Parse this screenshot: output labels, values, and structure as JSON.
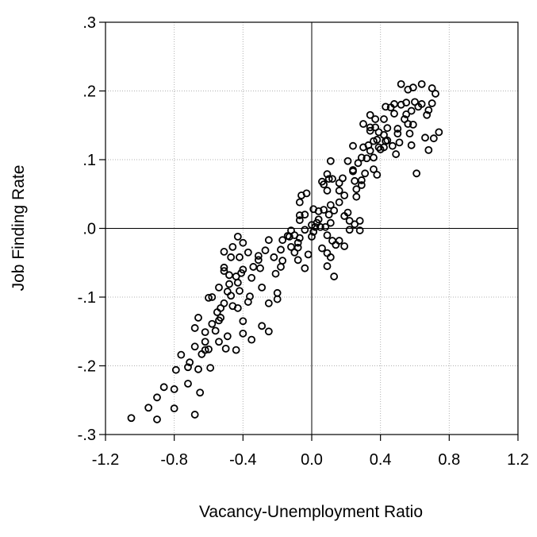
{
  "chart_data": {
    "type": "scatter",
    "x_label": "Vacancy-Unemployment Ratio",
    "y_label": "Job Finding Rate",
    "xlim": [
      -1.2,
      1.2
    ],
    "ylim": [
      -0.3,
      0.3
    ],
    "xticks": [
      -1.2,
      -0.8,
      -0.4,
      {
        "value": 0,
        "label": "0.0"
      },
      0.4,
      0.8,
      1.2
    ],
    "yticks": [
      {
        "value": -0.3,
        "label": "-.3"
      },
      {
        "value": -0.2,
        "label": "-.2"
      },
      {
        "value": -0.1,
        "label": "-.1"
      },
      {
        "value": 0,
        "label": ".0"
      },
      {
        "value": 0.1,
        "label": ".1"
      },
      {
        "value": 0.2,
        "label": ".2"
      },
      {
        "value": 0.3,
        "label": ".3"
      }
    ],
    "grid": true,
    "color": "#000000",
    "x": [
      -1.05,
      -0.9,
      -0.95,
      -0.8,
      -0.9,
      -0.86,
      -0.8,
      -0.72,
      -0.68,
      -0.65,
      -0.66,
      -0.71,
      -0.79,
      -0.72,
      -0.76,
      -0.59,
      -0.64,
      -0.62,
      -0.66,
      -0.68,
      -0.68,
      -0.6,
      -0.62,
      -0.54,
      -0.5,
      -0.44,
      -0.49,
      -0.54,
      -0.58,
      -0.56,
      -0.62,
      -0.55,
      -0.53,
      -0.53,
      -0.51,
      -0.46,
      -0.43,
      -0.47,
      -0.49,
      -0.48,
      -0.43,
      -0.42,
      -0.37,
      -0.36,
      -0.44,
      -0.41,
      -0.4,
      -0.34,
      -0.35,
      -0.31,
      -0.31,
      -0.37,
      -0.4,
      -0.43,
      -0.47,
      -0.46,
      -0.42,
      -0.51,
      -0.54,
      -0.58,
      -0.48,
      -0.51,
      -0.51,
      -0.6,
      -0.4,
      -0.4,
      -0.35,
      -0.29,
      -0.25,
      -0.2,
      -0.2,
      -0.25,
      -0.29,
      -0.3,
      -0.21,
      -0.17,
      -0.13,
      -0.22,
      -0.25,
      -0.27,
      -0.18,
      -0.17,
      -0.18,
      -0.12,
      -0.14,
      -0.12,
      -0.1,
      -0.08,
      -0.1,
      -0.08,
      -0.08,
      -0.07,
      -0.07,
      -0.07,
      -0.04,
      -0.04,
      -0.07,
      -0.06,
      -0.03,
      -0.02,
      -0.04,
      0.0,
      0.01,
      0.04,
      0.03,
      0.0,
      0.02,
      0.05,
      0.08,
      0.01,
      0.04,
      0.07,
      0.1,
      0.11,
      0.11,
      0.13,
      0.16,
      0.16,
      0.09,
      0.07,
      0.06,
      0.09,
      0.1,
      0.12,
      0.11,
      0.16,
      0.18,
      0.19,
      0.21,
      0.19,
      0.22,
      0.22,
      0.09,
      0.12,
      0.16,
      0.06,
      0.09,
      0.11,
      0.14,
      0.09,
      0.13,
      0.19,
      0.25,
      0.28,
      0.28,
      0.26,
      0.24,
      0.21,
      0.24,
      0.25,
      0.26,
      0.29,
      0.29,
      0.31,
      0.27,
      0.29,
      0.32,
      0.36,
      0.36,
      0.38,
      0.3,
      0.24,
      0.34,
      0.34,
      0.33,
      0.34,
      0.36,
      0.39,
      0.38,
      0.39,
      0.37,
      0.37,
      0.42,
      0.42,
      0.44,
      0.43,
      0.42,
      0.44,
      0.4,
      0.47,
      0.49,
      0.51,
      0.5,
      0.5,
      0.48,
      0.46,
      0.52,
      0.55,
      0.54,
      0.58,
      0.57,
      0.59,
      0.6,
      0.67,
      0.68,
      0.7,
      0.64,
      0.72,
      0.7,
      0.64,
      0.59,
      0.55,
      0.34,
      0.3,
      0.43,
      0.48,
      0.52,
      0.56,
      0.62,
      0.74,
      0.71,
      0.68,
      0.66,
      0.56,
      0.58,
      0.61
    ],
    "values": [
      -0.276,
      -0.278,
      -0.261,
      -0.262,
      -0.246,
      -0.231,
      -0.234,
      -0.226,
      -0.271,
      -0.239,
      -0.205,
      -0.195,
      -0.206,
      -0.202,
      -0.184,
      -0.203,
      -0.183,
      -0.177,
      -0.13,
      -0.172,
      -0.145,
      -0.176,
      -0.165,
      -0.165,
      -0.175,
      -0.177,
      -0.157,
      -0.134,
      -0.139,
      -0.149,
      -0.151,
      -0.122,
      -0.116,
      -0.13,
      -0.109,
      -0.113,
      -0.116,
      -0.098,
      -0.092,
      -0.081,
      -0.079,
      -0.091,
      -0.107,
      -0.099,
      -0.07,
      -0.065,
      -0.06,
      -0.056,
      -0.072,
      -0.046,
      -0.04,
      -0.035,
      -0.021,
      -0.012,
      -0.042,
      -0.027,
      -0.042,
      -0.057,
      -0.086,
      -0.1,
      -0.068,
      -0.062,
      -0.034,
      -0.101,
      -0.135,
      -0.153,
      -0.162,
      -0.142,
      -0.15,
      -0.103,
      -0.094,
      -0.109,
      -0.086,
      -0.058,
      -0.066,
      -0.017,
      -0.012,
      -0.042,
      -0.017,
      -0.032,
      -0.031,
      -0.047,
      -0.056,
      -0.027,
      -0.011,
      -0.003,
      -0.01,
      -0.028,
      -0.035,
      -0.046,
      -0.021,
      -0.014,
      0.012,
      0.019,
      0.02,
      -0.002,
      0.038,
      0.048,
      0.051,
      -0.038,
      -0.058,
      -0.012,
      -0.005,
      0.013,
      0.008,
      0.005,
      0.002,
      0.002,
      0.002,
      0.028,
      0.025,
      0.027,
      0.02,
      0.008,
      0.034,
      0.026,
      0.038,
      0.055,
      0.055,
      0.064,
      0.068,
      0.079,
      0.072,
      0.072,
      0.098,
      0.066,
      0.073,
      0.048,
      0.023,
      0.018,
      0.011,
      -0.002,
      -0.01,
      -0.018,
      -0.018,
      -0.029,
      -0.036,
      -0.042,
      -0.024,
      -0.055,
      -0.07,
      -0.026,
      0.006,
      0.011,
      -0.003,
      0.046,
      0.083,
      0.098,
      0.085,
      0.069,
      0.057,
      0.07,
      0.063,
      0.08,
      0.095,
      0.103,
      0.102,
      0.103,
      0.086,
      0.078,
      0.118,
      0.12,
      0.147,
      0.142,
      0.121,
      0.113,
      0.127,
      0.14,
      0.129,
      0.118,
      0.147,
      0.159,
      0.159,
      0.136,
      0.146,
      0.127,
      0.118,
      0.128,
      0.115,
      0.12,
      0.108,
      0.125,
      0.138,
      0.145,
      0.167,
      0.176,
      0.18,
      0.166,
      0.159,
      0.171,
      0.138,
      0.151,
      0.184,
      0.165,
      0.172,
      0.182,
      0.181,
      0.196,
      0.204,
      0.21,
      0.205,
      0.183,
      0.165,
      0.152,
      0.177,
      0.181,
      0.21,
      0.202,
      0.177,
      0.14,
      0.131,
      0.114,
      0.132,
      0.152,
      0.121,
      0.08
    ]
  }
}
